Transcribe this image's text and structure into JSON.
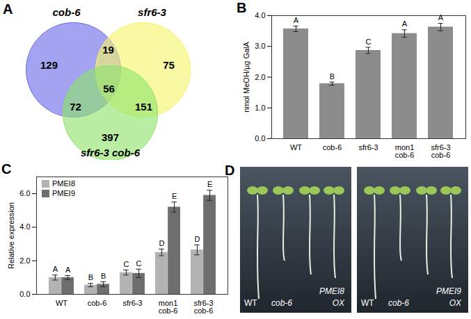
{
  "chart_data": [
    {
      "type": "venn",
      "title": "A",
      "sets": [
        {
          "name": "cob-6",
          "color": "#6a6ae8"
        },
        {
          "name": "sfr6-3",
          "color": "#f5f56a"
        },
        {
          "name": "sfr6-3 cob-6",
          "color": "#8ee36a"
        }
      ],
      "regions": [
        {
          "sets": [
            "cob-6"
          ],
          "value": 129
        },
        {
          "sets": [
            "sfr6-3"
          ],
          "value": 75
        },
        {
          "sets": [
            "sfr6-3 cob-6"
          ],
          "value": 397
        },
        {
          "sets": [
            "cob-6",
            "sfr6-3"
          ],
          "value": 19
        },
        {
          "sets": [
            "cob-6",
            "sfr6-3 cob-6"
          ],
          "value": 72
        },
        {
          "sets": [
            "sfr6-3",
            "sfr6-3 cob-6"
          ],
          "value": 151
        },
        {
          "sets": [
            "cob-6",
            "sfr6-3",
            "sfr6-3 cob-6"
          ],
          "value": 56
        }
      ]
    },
    {
      "type": "bar",
      "title": "B",
      "y_label": "nmol MeOH/µg GalA",
      "categories": [
        "WT",
        "cob-6",
        "sfr6-3",
        "mon1 cob-6",
        "sfr6-3 cob-6"
      ],
      "values": [
        3.57,
        1.79,
        2.87,
        3.42,
        3.63
      ],
      "errors": [
        0.09,
        0.05,
        0.1,
        0.12,
        0.12
      ],
      "letters": [
        "A",
        "B",
        "C",
        "A",
        "A"
      ],
      "color": "#8c8c8c",
      "ylim": [
        0,
        4
      ],
      "yticks": [
        0,
        1,
        2,
        3,
        4
      ]
    },
    {
      "type": "bar",
      "title": "C",
      "y_label": "Relative expression",
      "categories": [
        "WT",
        "cob-6",
        "sfr6-3",
        "mon1 cob-6",
        "sfr6-3 cob-6"
      ],
      "series": [
        {
          "name": "PMEI8",
          "color": "#b3b3b3",
          "values": [
            1.0,
            0.55,
            1.3,
            2.5,
            2.65
          ],
          "errors": [
            0.15,
            0.1,
            0.15,
            0.2,
            0.3
          ],
          "letters": [
            "A",
            "B",
            "C",
            "D",
            "D"
          ]
        },
        {
          "name": "PMEI9",
          "color": "#6e6e6e",
          "values": [
            1.0,
            0.6,
            1.25,
            5.2,
            5.9
          ],
          "errors": [
            0.12,
            0.15,
            0.25,
            0.3,
            0.3
          ],
          "letters": [
            "A",
            "B",
            "C",
            "E",
            "E"
          ]
        }
      ],
      "legend": "top-left",
      "ylim": [
        0,
        7
      ],
      "yticks": [
        0,
        2,
        4,
        6
      ]
    }
  ],
  "image": {
    "title": "D",
    "photos": [
      {
        "labels": [
          "WT",
          "cob-6",
          "OX",
          "PMEI8"
        ]
      },
      {
        "labels": [
          "WT",
          "cob-6",
          "OX",
          "PMEI9"
        ]
      }
    ]
  }
}
